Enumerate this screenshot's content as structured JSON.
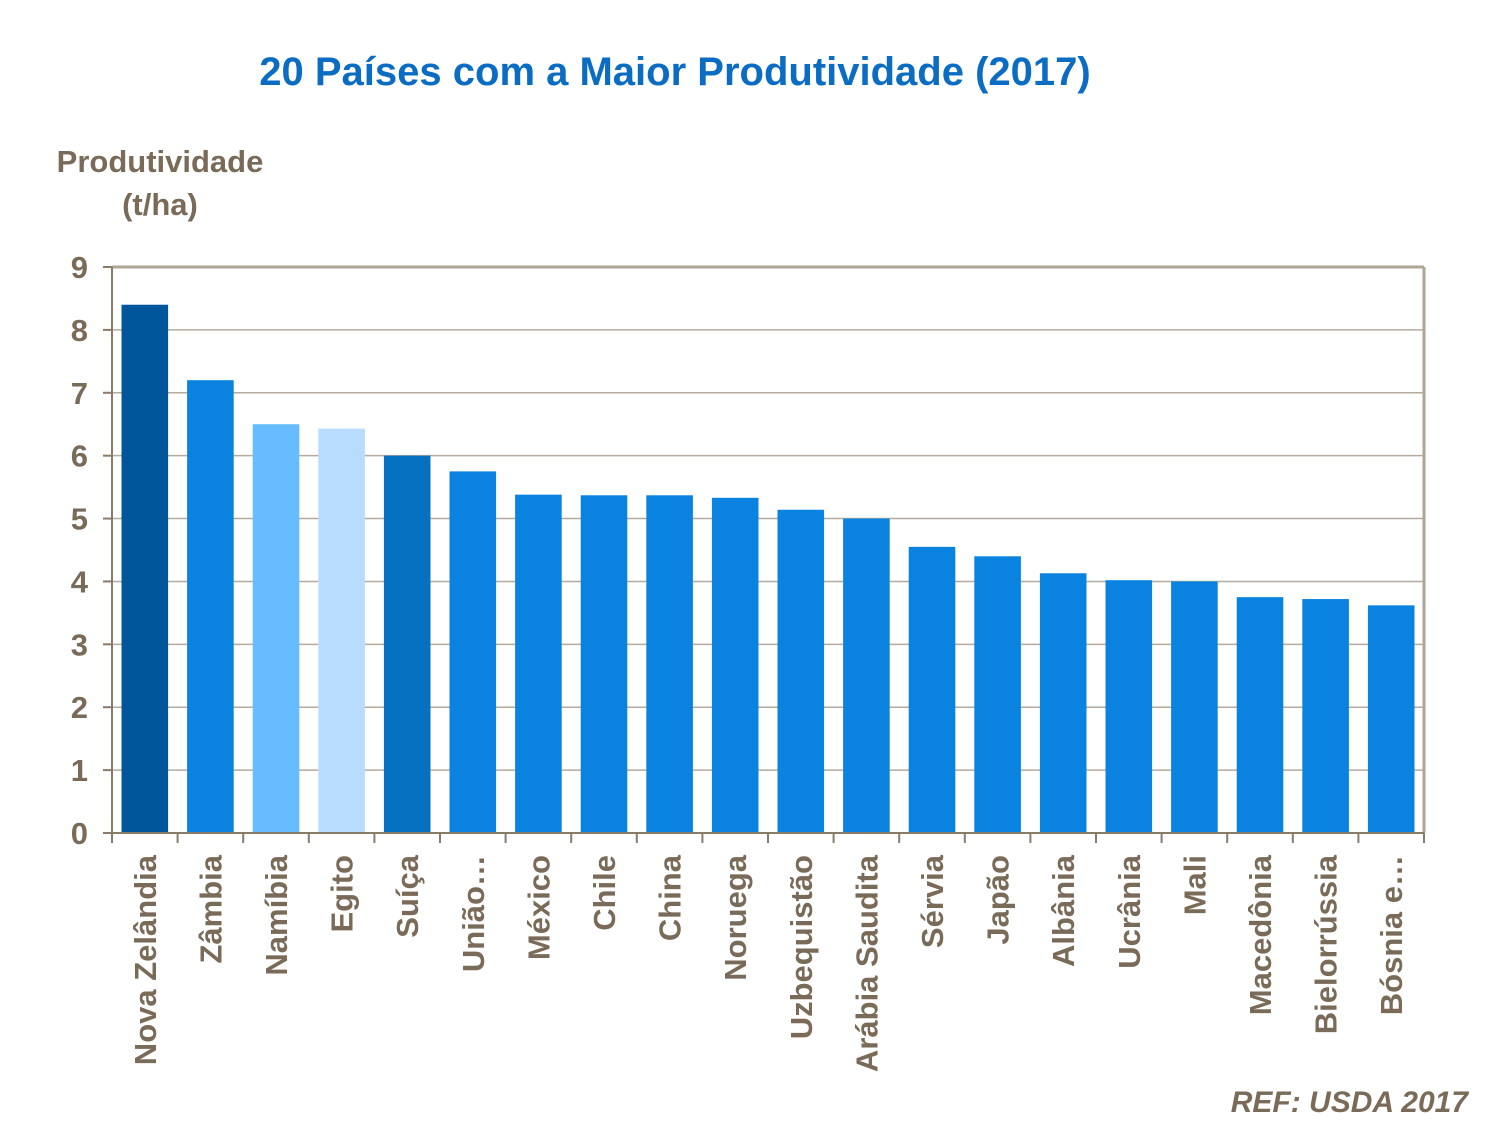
{
  "chart_data": {
    "type": "bar",
    "title": "20 Países com a Maior Produtividade (2017)",
    "ylabel_lines": [
      "Produtividade",
      "(t/ha)"
    ],
    "xlabel": "",
    "ylim": [
      0,
      9
    ],
    "yticks": [
      0,
      1,
      2,
      3,
      4,
      5,
      6,
      7,
      8,
      9
    ],
    "grid": true,
    "categories": [
      "Nova Zelândia",
      "Zâmbia",
      "Namíbia",
      "Egito",
      "Suíça",
      "União…",
      "México",
      "Chile",
      "China",
      "Noruega",
      "Uzbequistão",
      "Arábia Saudita",
      "Sérvia",
      "Japão",
      "Albânia",
      "Ucrânia",
      "Mali",
      "Macedônia",
      "Bielorrússia",
      "Bósnia e…"
    ],
    "values": [
      8.4,
      7.2,
      6.5,
      6.43,
      6.0,
      5.75,
      5.38,
      5.37,
      5.37,
      5.33,
      5.14,
      5.0,
      4.55,
      4.4,
      4.13,
      4.02,
      4.0,
      3.75,
      3.72,
      3.62
    ],
    "colors": [
      "#00569a",
      "#0a83e0",
      "#66bcff",
      "#b8dcff",
      "#0571c0",
      "#0a83e0",
      "#0a83e0",
      "#0a83e0",
      "#0a83e0",
      "#0a83e0",
      "#0a83e0",
      "#0a83e0",
      "#0a83e0",
      "#0a83e0",
      "#0a83e0",
      "#0a83e0",
      "#0a83e0",
      "#0a83e0",
      "#0a83e0",
      "#0a83e0"
    ],
    "source": "REF: USDA 2017"
  }
}
